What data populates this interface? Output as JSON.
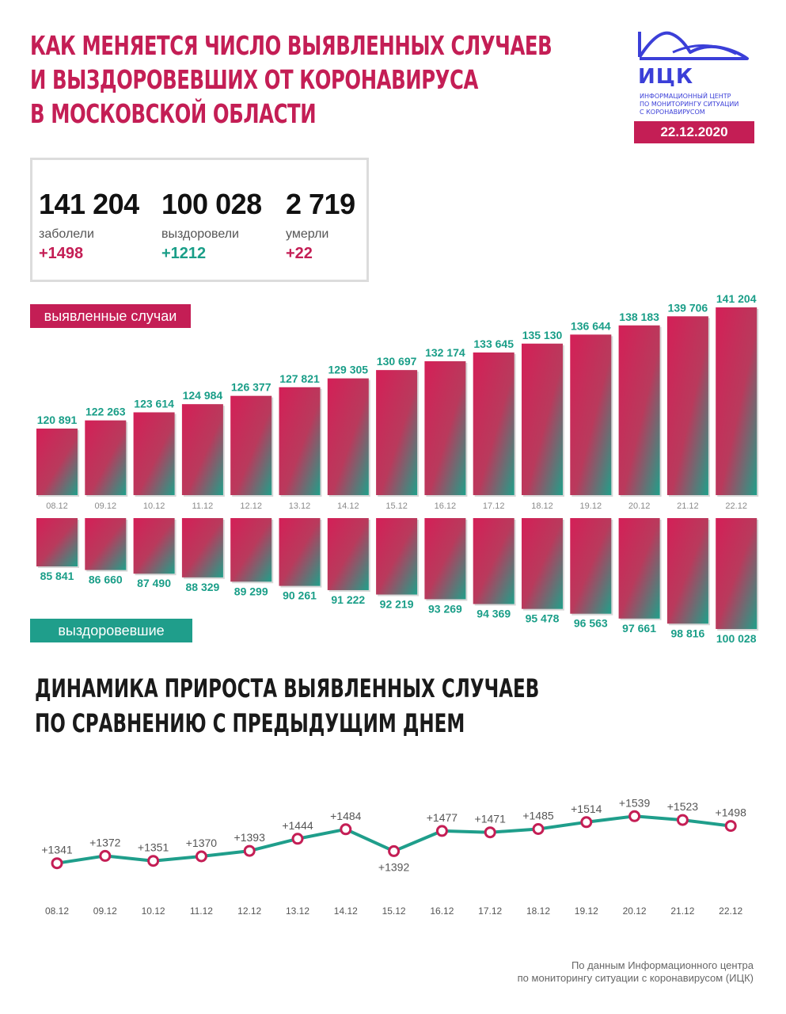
{
  "header": {
    "title_lines": [
      "КАК МЕНЯЕТСЯ ЧИСЛО ВЫЯВЛЕННЫХ СЛУЧАЕВ",
      "И ВЫЗДОРОВЕВШИХ ОТ КОРОНАВИРУСА",
      "В МОСКОВСКОЙ ОБЛАСТИ"
    ],
    "logo_abbr": "ИЦК",
    "logo_text_lines": [
      "ИНФОРМАЦИОННЫЙ ЦЕНТР",
      "ПО МОНИТОРИНГУ СИТУАЦИИ",
      "С КОРОНАВИРУСОМ"
    ],
    "date": "22.12.2020"
  },
  "stats": {
    "infected": {
      "value": "141 204",
      "label": "заболели",
      "delta": "+1498"
    },
    "recovered": {
      "value": "100 028",
      "label": "выздоровели",
      "delta": "+1212"
    },
    "died": {
      "value": "2 719",
      "label": "умерли",
      "delta": "+22"
    }
  },
  "tags": {
    "cases": "выявленные случаи",
    "recovered": "выздоровевшие"
  },
  "colors": {
    "red": "#c41e55",
    "green": "#1f9e8b",
    "green_text": "#1a9e88"
  },
  "chart_data": [
    {
      "type": "bar",
      "categories": [
        "08.12",
        "09.12",
        "10.12",
        "11.12",
        "12.12",
        "13.12",
        "14.12",
        "15.12",
        "16.12",
        "17.12",
        "18.12",
        "19.12",
        "20.12",
        "21.12",
        "22.12"
      ],
      "series": [
        {
          "name": "выявленные случаи",
          "values": [
            120891,
            122263,
            123614,
            124984,
            126377,
            127821,
            129305,
            130697,
            132174,
            133645,
            135130,
            136644,
            138183,
            139706,
            141204
          ],
          "labels": [
            "120 891",
            "122 263",
            "123 614",
            "124 984",
            "126 377",
            "127 821",
            "129 305",
            "130 697",
            "132 174",
            "133 645",
            "135 130",
            "136 644",
            "138 183",
            "139 706",
            "141 204"
          ]
        },
        {
          "name": "выздоровевшие",
          "values": [
            85841,
            86660,
            87490,
            88329,
            89299,
            90261,
            91222,
            92219,
            93269,
            94369,
            95478,
            96563,
            97661,
            98816,
            100028
          ],
          "labels": [
            "85 841",
            "86 660",
            "87 490",
            "88 329",
            "89 299",
            "90 261",
            "91 222",
            "92 219",
            "93 269",
            "94 369",
            "95 478",
            "96 563",
            "97 661",
            "98 816",
            "100 028"
          ]
        }
      ]
    },
    {
      "type": "line",
      "title_lines": [
        "ДИНАМИКА ПРИРОСТА ВЫЯВЛЕННЫХ СЛУЧАЕВ",
        "ПО СРАВНЕНИЮ С ПРЕДЫДУЩИМ ДНЕМ"
      ],
      "categories": [
        "08.12",
        "09.12",
        "10.12",
        "11.12",
        "12.12",
        "13.12",
        "14.12",
        "15.12",
        "16.12",
        "17.12",
        "18.12",
        "19.12",
        "20.12",
        "21.12",
        "22.12"
      ],
      "values": [
        1341,
        1372,
        1351,
        1370,
        1393,
        1444,
        1484,
        1392,
        1477,
        1471,
        1485,
        1514,
        1539,
        1523,
        1498
      ],
      "labels": [
        "+1341",
        "+1372",
        "+1351",
        "+1370",
        "+1393",
        "+1444",
        "+1484",
        "+1392",
        "+1477",
        "+1471",
        "+1485",
        "+1514",
        "+1539",
        "+1523",
        "+1498"
      ]
    }
  ],
  "footer_lines": [
    "По данным Информационного центра",
    "по мониторингу ситуации с коронавирусом (ИЦК)"
  ]
}
